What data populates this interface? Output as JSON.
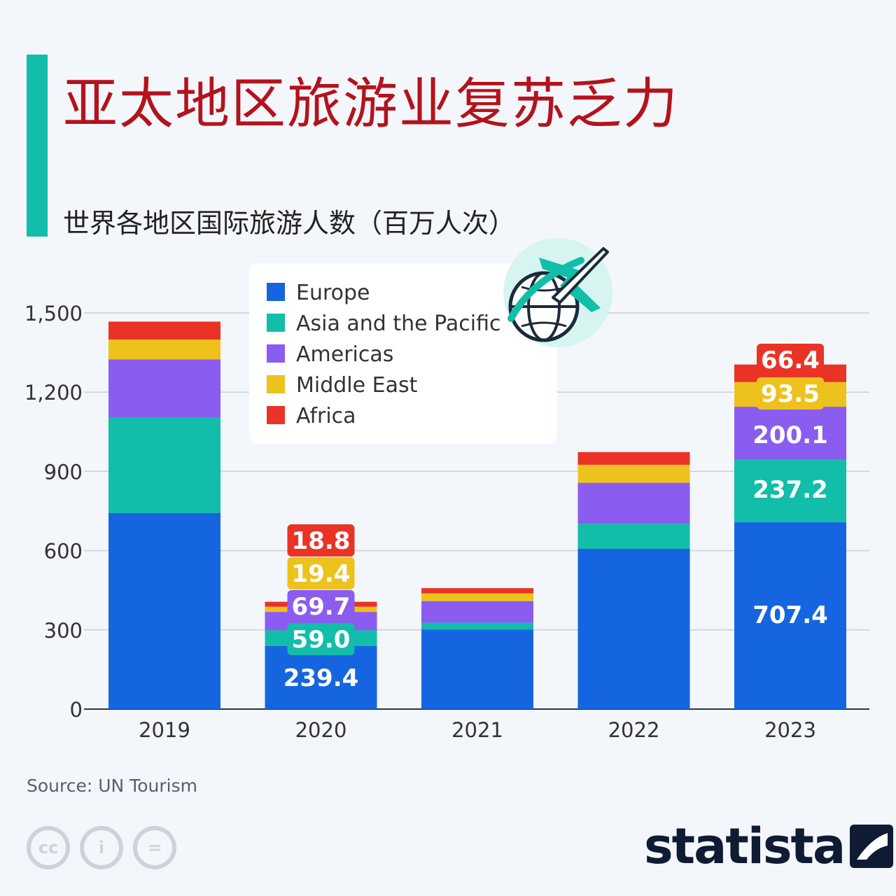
{
  "header": {
    "title": "亚太地区旅游业复苏乏力",
    "subtitle": "世界各地区国际旅游人数（百万人次）"
  },
  "footer": {
    "source": "Source: UN Tourism",
    "brand": "statista",
    "license_icons": [
      "cc-icon",
      "attribution-icon",
      "no-derivatives-icon"
    ],
    "cc_label": "cc",
    "by_label": "i",
    "nd_label": "="
  },
  "colors": {
    "europe": "#1565e0",
    "asia": "#12bda9",
    "americas": "#8a5cf0",
    "middle_east": "#eec21d",
    "africa": "#ea3326",
    "accent": "#12bda9",
    "title": "#b3131c"
  },
  "chart_data": {
    "type": "bar",
    "stacked": true,
    "categories": [
      "2019",
      "2020",
      "2021",
      "2022",
      "2023"
    ],
    "ylim": [
      0,
      1500
    ],
    "yticks": [
      0,
      300,
      600,
      900,
      1200,
      1500
    ],
    "ytick_labels": [
      "0",
      "300",
      "600",
      "900",
      "1,200",
      "1,500"
    ],
    "grid": true,
    "legend_position": "top-center",
    "series": [
      {
        "name": "Europe",
        "key": "europe",
        "values": [
          742,
          239.4,
          301,
          607,
          707.4
        ]
      },
      {
        "name": "Asia and the Pacific",
        "key": "asia",
        "values": [
          363,
          59.0,
          26,
          95,
          237.2
        ]
      },
      {
        "name": "Americas",
        "key": "americas",
        "values": [
          219,
          69.7,
          82,
          155,
          200.1
        ]
      },
      {
        "name": "Middle East",
        "key": "middle_east",
        "values": [
          75,
          19.4,
          29,
          68,
          93.5
        ]
      },
      {
        "name": "Africa",
        "key": "africa",
        "values": [
          68,
          18.8,
          20,
          48,
          66.4
        ]
      }
    ],
    "data_labels": [
      {
        "category": "2020",
        "series": "europe",
        "text": "239.4"
      },
      {
        "category": "2020",
        "series": "asia",
        "text": "59.0"
      },
      {
        "category": "2020",
        "series": "americas",
        "text": "69.7"
      },
      {
        "category": "2020",
        "series": "middle_east",
        "text": "19.4"
      },
      {
        "category": "2020",
        "series": "africa",
        "text": "18.8"
      },
      {
        "category": "2023",
        "series": "europe",
        "text": "707.4"
      },
      {
        "category": "2023",
        "series": "asia",
        "text": "237.2"
      },
      {
        "category": "2023",
        "series": "americas",
        "text": "200.1"
      },
      {
        "category": "2023",
        "series": "middle_east",
        "text": "93.5"
      },
      {
        "category": "2023",
        "series": "africa",
        "text": "66.4"
      }
    ]
  }
}
